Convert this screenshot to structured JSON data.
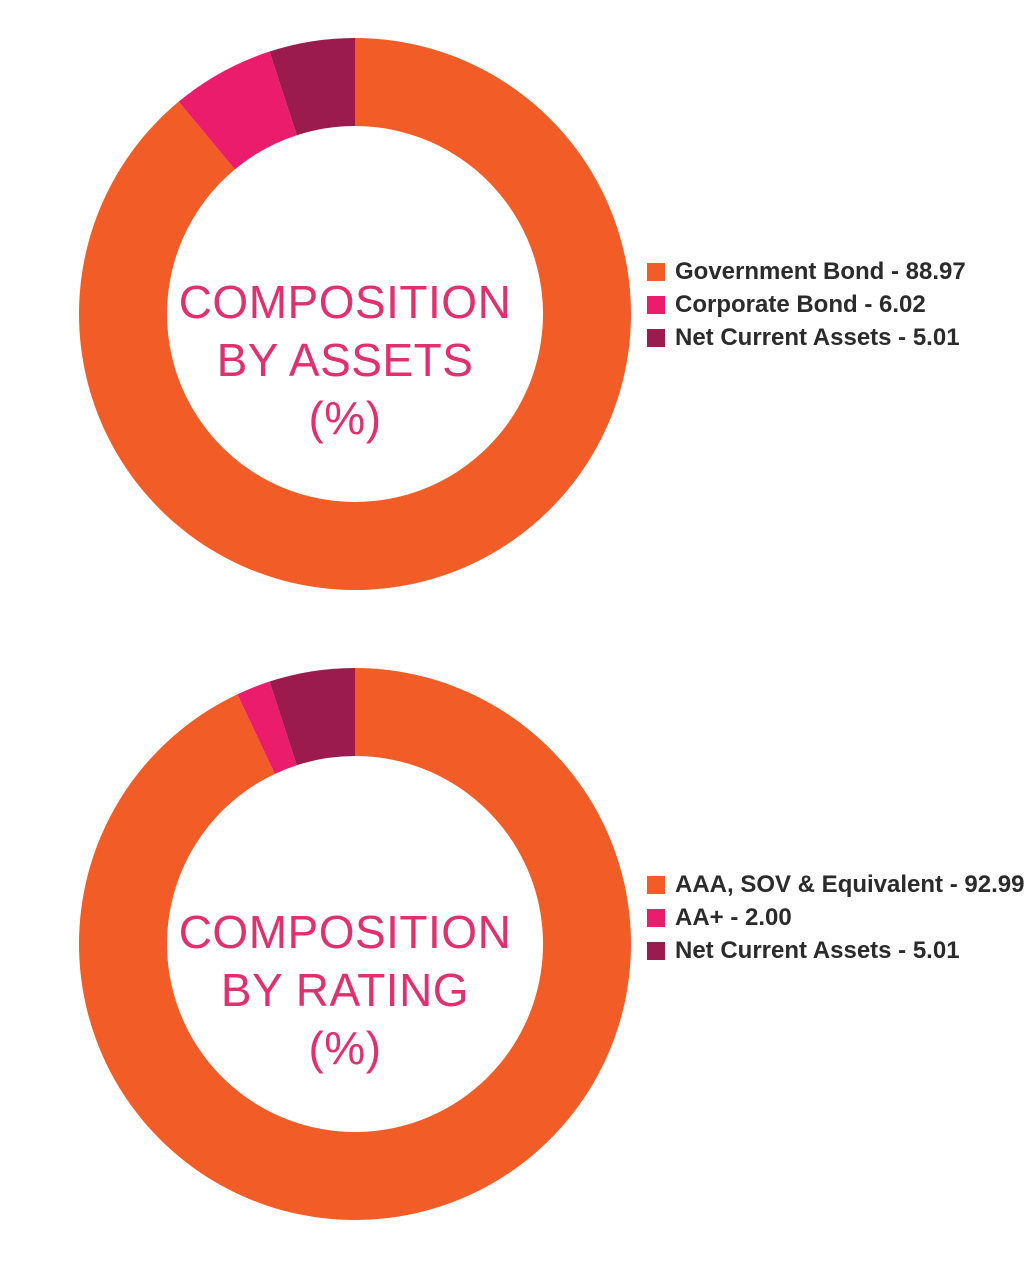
{
  "colors": {
    "orange": "#f15c27",
    "pink": "#ec1c6c",
    "maroon": "#9b1b4e",
    "title": "#e22f6e"
  },
  "chart_data": [
    {
      "type": "pie",
      "title_lines": [
        "COMPOSITION",
        "BY ASSETS",
        "(%)"
      ],
      "categories": [
        "Government Bond",
        "Corporate Bond",
        "Net Current Assets"
      ],
      "values": [
        88.97,
        6.02,
        5.01
      ],
      "colors": [
        "#f15c27",
        "#ec1c6c",
        "#9b1b4e"
      ],
      "legend_labels": [
        "Government Bond - 88.97",
        "Corporate Bond - 6.02",
        "Net Current Assets - 5.01"
      ],
      "legend_position": "right",
      "donut": true
    },
    {
      "type": "pie",
      "title_lines": [
        "COMPOSITION",
        "BY RATING",
        "(%)"
      ],
      "categories": [
        "AAA, SOV & Equivalent",
        "AA+",
        "Net Current Assets"
      ],
      "values": [
        92.99,
        2.0,
        5.01
      ],
      "colors": [
        "#f15c27",
        "#ec1c6c",
        "#9b1b4e"
      ],
      "legend_labels": [
        "AAA, SOV & Equivalent - 92.99",
        "AA+ - 2.00",
        "Net Current Assets - 5.01"
      ],
      "legend_position": "right",
      "donut": true
    }
  ]
}
